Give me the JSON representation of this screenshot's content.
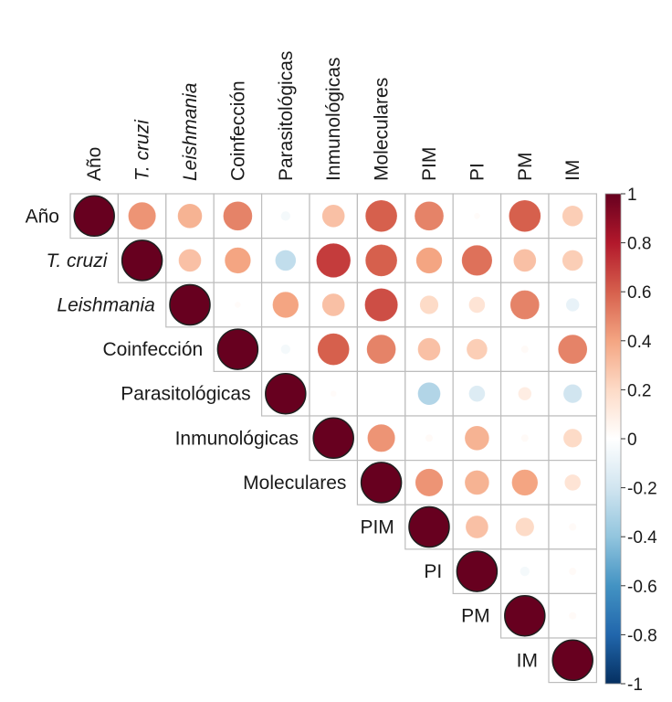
{
  "chart_data": {
    "type": "heatmap",
    "style": "corrplot-circle-upper-triangle",
    "variables": [
      {
        "label": "Año",
        "italic": false
      },
      {
        "label": "T. cruzi",
        "italic": true
      },
      {
        "label": "Leishmania",
        "italic": true
      },
      {
        "label": "Coinfección",
        "italic": false
      },
      {
        "label": "Parasitológicas",
        "italic": false
      },
      {
        "label": "Inmunológicas",
        "italic": false
      },
      {
        "label": "Moleculares",
        "italic": false
      },
      {
        "label": "PIM",
        "italic": false
      },
      {
        "label": "PI",
        "italic": false
      },
      {
        "label": "PM",
        "italic": false
      },
      {
        "label": "IM",
        "italic": false
      }
    ],
    "matrix": [
      [
        1,
        0.45,
        0.35,
        0.5,
        -0.05,
        0.3,
        0.6,
        0.5,
        0.02,
        0.6,
        0.25
      ],
      [
        null,
        1,
        0.3,
        0.4,
        -0.25,
        0.7,
        0.6,
        0.4,
        0.55,
        0.3,
        0.25
      ],
      [
        null,
        null,
        1,
        0.02,
        0.4,
        0.3,
        0.65,
        0.2,
        0.15,
        0.5,
        -0.1
      ],
      [
        null,
        null,
        null,
        1,
        -0.05,
        0.6,
        0.5,
        0.3,
        0.25,
        0.03,
        0.5
      ],
      [
        null,
        null,
        null,
        null,
        1,
        0.02,
        0,
        -0.3,
        -0.15,
        0.1,
        -0.2
      ],
      [
        null,
        null,
        null,
        null,
        null,
        1,
        0.45,
        0.03,
        0.35,
        0.03,
        0.2
      ],
      [
        null,
        null,
        null,
        null,
        null,
        null,
        1,
        0.45,
        0.35,
        0.4,
        0.15
      ],
      [
        null,
        null,
        null,
        null,
        null,
        null,
        null,
        1,
        0.3,
        0.2,
        0.03
      ],
      [
        null,
        null,
        null,
        null,
        null,
        null,
        null,
        null,
        1,
        -0.05,
        0.03
      ],
      [
        null,
        null,
        null,
        null,
        null,
        null,
        null,
        null,
        null,
        1,
        0.03
      ],
      [
        null,
        null,
        null,
        null,
        null,
        null,
        null,
        null,
        null,
        null,
        1
      ]
    ],
    "colorbar": {
      "range": [
        -1,
        1
      ],
      "ticks": [
        "1",
        "0.8",
        "0.6",
        "0.4",
        "0.2",
        "0",
        "-0.2",
        "-0.4",
        "-0.6",
        "-0.8",
        "-1"
      ],
      "colors": [
        "#67001F",
        "#B2182B",
        "#D6604D",
        "#F4A582",
        "#FDDBC7",
        "#FFFFFF",
        "#D1E5F0",
        "#92C5DE",
        "#4393C3",
        "#2166AC",
        "#053061"
      ]
    }
  }
}
